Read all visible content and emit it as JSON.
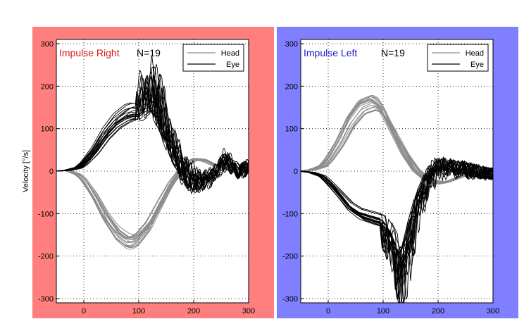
{
  "chart_data": [
    {
      "type": "line",
      "title": "Impulse Right",
      "annotation": "N=19",
      "title_color": "#d91818",
      "background_color": "#ff7f7f",
      "ylabel": "Velocity [°/s]",
      "xlabel": "",
      "xlim": [
        -50,
        300
      ],
      "ylim": [
        -310,
        310
      ],
      "xticks": [
        "0",
        "100",
        "200",
        "300"
      ],
      "yticks": [
        "300",
        "200",
        "100",
        "0",
        "-100",
        "-200",
        "-300"
      ],
      "grid": true,
      "legend": {
        "position": "top-right",
        "entries": [
          "Head",
          "Eye"
        ]
      },
      "n_trials": 19,
      "series": [
        {
          "name": "Head",
          "color": "#8c8c8c",
          "x": [
            -50,
            -30,
            -10,
            0,
            20,
            40,
            60,
            80,
            90,
            100,
            120,
            140,
            160,
            180,
            200,
            220,
            240,
            260,
            280,
            300
          ],
          "y": [
            0,
            2,
            -8,
            -20,
            -60,
            -110,
            -148,
            -168,
            -168,
            -160,
            -128,
            -78,
            -30,
            6,
            28,
            26,
            14,
            4,
            -2,
            -3
          ]
        },
        {
          "name": "Eye",
          "color": "#000000",
          "x": [
            -50,
            -30,
            -10,
            0,
            20,
            40,
            60,
            80,
            90,
            100,
            110,
            120,
            130,
            140,
            160,
            180,
            200,
            220,
            240,
            260,
            280,
            300
          ],
          "y": [
            0,
            2,
            8,
            18,
            48,
            88,
            118,
            136,
            140,
            138,
            150,
            160,
            140,
            110,
            40,
            -10,
            -35,
            -28,
            -8,
            30,
            -5,
            10
          ]
        }
      ]
    },
    {
      "type": "line",
      "title": "Impulse Left",
      "annotation": "N=19",
      "title_color": "#1a1acc",
      "background_color": "#7f7fff",
      "ylabel": "",
      "xlabel": "",
      "xlim": [
        -50,
        300
      ],
      "ylim": [
        -310,
        310
      ],
      "xticks": [
        "0",
        "100",
        "200",
        "300"
      ],
      "yticks": [
        "300",
        "200",
        "100",
        "0",
        "-100",
        "-200",
        "-300"
      ],
      "grid": true,
      "legend": {
        "position": "top-right",
        "entries": [
          "Head",
          "Eye"
        ]
      },
      "n_trials": 19,
      "series": [
        {
          "name": "Head",
          "color": "#8c8c8c",
          "x": [
            -50,
            -30,
            -10,
            0,
            20,
            40,
            60,
            80,
            90,
            100,
            120,
            140,
            160,
            180,
            200,
            220,
            240,
            260,
            280,
            300
          ],
          "y": [
            0,
            3,
            12,
            26,
            66,
            118,
            152,
            162,
            156,
            138,
            90,
            40,
            2,
            -20,
            -28,
            -24,
            -14,
            -6,
            0,
            2
          ]
        },
        {
          "name": "Eye",
          "color": "#000000",
          "x": [
            -50,
            -30,
            -10,
            0,
            20,
            40,
            60,
            80,
            90,
            100,
            110,
            120,
            130,
            140,
            160,
            180,
            200,
            220,
            240,
            260,
            280,
            300
          ],
          "y": [
            0,
            -3,
            -12,
            -24,
            -52,
            -82,
            -100,
            -108,
            -112,
            -115,
            -132,
            -160,
            -200,
            -175,
            -70,
            -10,
            18,
            14,
            10,
            4,
            -2,
            -6
          ]
        }
      ]
    }
  ]
}
